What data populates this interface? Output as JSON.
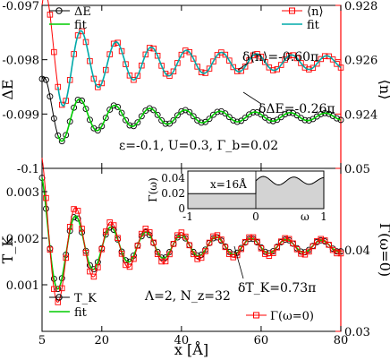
{
  "chart_data": [
    {
      "type": "line",
      "panel": "top",
      "xlim": [
        5,
        80
      ],
      "ylim_left": [
        -0.1,
        -0.097
      ],
      "ylim_right": [
        0.922,
        0.928
      ],
      "ylabel_left": "ΔE",
      "ylabel_right": "⟨n⟩",
      "yticks_left": [
        "-0.097",
        "-0.098",
        "-0.099",
        "-0.1"
      ],
      "yticks_right": [
        "0.928",
        "0.926",
        "0.924"
      ],
      "annotation": "ε=-0.1, U=0.3, Γ_b=0.02",
      "label_delta_n": "δ⟨n⟩=-0.60π",
      "label_delta_E": "δΔE=-0.26π",
      "legend_left": [
        "ΔE",
        "fit"
      ],
      "legend_right": [
        "⟨n⟩",
        "fit"
      ],
      "series": [
        {
          "name": "ΔE",
          "axis": "left",
          "color": "#000000",
          "marker": "circle",
          "model": {
            "b": -0.09905,
            "a": 0.0052,
            "k": 0.357,
            "phi": 2.2,
            "x0": 1.5,
            "xmin": 5
          }
        },
        {
          "name": "fit",
          "axis": "left",
          "color": "#00cc00",
          "model": {
            "b": -0.09905,
            "a": 0.0052,
            "k": 0.357,
            "phi": 2.2,
            "x0": 1.5,
            "xmin": 9
          }
        },
        {
          "name": "⟨n⟩",
          "axis": "right",
          "color": "#ff0000",
          "marker": "square",
          "model": {
            "b": 0.9259,
            "a": 0.019,
            "k": 0.357,
            "phi": 1.95,
            "x0": 1.5,
            "xmin": 5
          }
        },
        {
          "name": "fit",
          "axis": "right",
          "color": "#00aaaa",
          "model": {
            "b": 0.9259,
            "a": 0.019,
            "k": 0.357,
            "phi": 1.95,
            "x0": 1.5,
            "xmin": 9
          }
        }
      ]
    },
    {
      "type": "line",
      "panel": "bottom",
      "xlim": [
        5,
        80
      ],
      "xlabel": "x [Å]",
      "xticks": [
        "5",
        "20",
        "40",
        "60",
        "80"
      ],
      "ylim_left": [
        0,
        0.0035
      ],
      "ylim_right": [
        0.03,
        0.05
      ],
      "ylabel_left": "T_K",
      "ylabel_right": "Γ(ω=0)",
      "yticks_left": [
        "0.003",
        "0.002",
        "0.001"
      ],
      "yticks_right": [
        "0.05",
        "0.04",
        "0.03"
      ],
      "annotation": "Λ=2, N_z=32",
      "label_delta_T": "δT_K=0.73π",
      "legend_left": [
        "T_K",
        "fit"
      ],
      "legend_right": [
        "Γ(ω=0)"
      ],
      "series": [
        {
          "name": "T_K",
          "axis": "left",
          "color": "#000000",
          "marker": "circle",
          "model": {
            "b": 0.00183,
            "a": 0.0097,
            "k": 0.357,
            "phi": 2.9,
            "x0": 1.5,
            "xmin": 5
          }
        },
        {
          "name": "fit",
          "axis": "left",
          "color": "#00cc00",
          "model": {
            "b": 0.00183,
            "a": 0.0097,
            "k": 0.357,
            "phi": 2.9,
            "x0": 1.5,
            "xmin": 5
          }
        },
        {
          "name": "Γ(ω=0)",
          "axis": "right",
          "color": "#ff0000",
          "marker": "square",
          "model": {
            "b": 0.0404,
            "a": 0.072,
            "k": 0.357,
            "phi": 2.9,
            "x0": 1.5,
            "xmin": 5
          }
        }
      ],
      "inset": {
        "xlim": [
          -1,
          1
        ],
        "ylim": [
          0,
          0.05
        ],
        "xlabel": "ω",
        "ylabel": "Γ(ω)",
        "xticks": [
          "-1",
          "0",
          "1"
        ],
        "yticks": [
          "0.04",
          "0.02",
          "0"
        ],
        "annotation": "x=16Å",
        "fill_color": "#d3d3d3",
        "low_level": 0.02,
        "high_level": 0.037,
        "ripple": 0.006
      }
    }
  ]
}
